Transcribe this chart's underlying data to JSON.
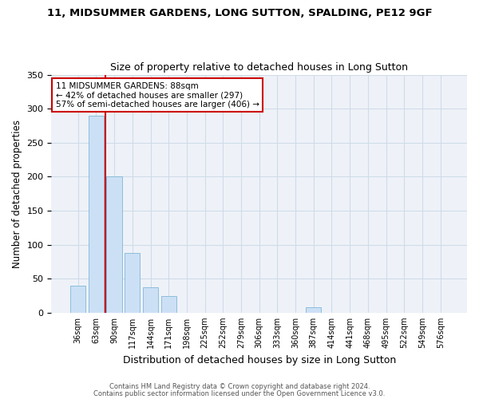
{
  "title1": "11, MIDSUMMER GARDENS, LONG SUTTON, SPALDING, PE12 9GF",
  "title2": "Size of property relative to detached houses in Long Sutton",
  "xlabel": "Distribution of detached houses by size in Long Sutton",
  "ylabel": "Number of detached properties",
  "categories": [
    "36sqm",
    "63sqm",
    "90sqm",
    "117sqm",
    "144sqm",
    "171sqm",
    "198sqm",
    "225sqm",
    "252sqm",
    "279sqm",
    "306sqm",
    "333sqm",
    "360sqm",
    "387sqm",
    "414sqm",
    "441sqm",
    "468sqm",
    "495sqm",
    "522sqm",
    "549sqm",
    "576sqm"
  ],
  "values": [
    40,
    290,
    200,
    88,
    37,
    25,
    0,
    0,
    0,
    0,
    0,
    0,
    0,
    8,
    0,
    0,
    0,
    0,
    0,
    0,
    0
  ],
  "bar_color": "#cce0f5",
  "bar_edge_color": "#7fb8d8",
  "property_line_x": 1.5,
  "annotation_lines": [
    "11 MIDSUMMER GARDENS: 88sqm",
    "← 42% of detached houses are smaller (297)",
    "57% of semi-detached houses are larger (406) →"
  ],
  "annotation_box_color": "#cc0000",
  "ylim": [
    0,
    350
  ],
  "grid_color": "#d0dce8",
  "background_color": "#eef2f8",
  "footer1": "Contains HM Land Registry data © Crown copyright and database right 2024.",
  "footer2": "Contains public sector information licensed under the Open Government Licence v3.0."
}
